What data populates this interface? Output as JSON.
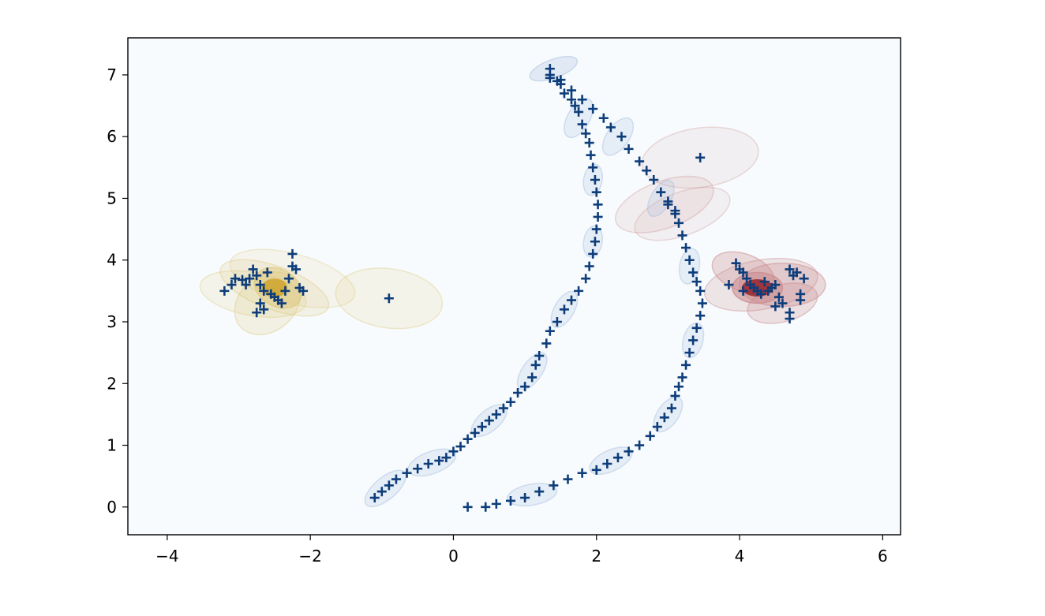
{
  "chart_data": {
    "type": "scatter",
    "title": "",
    "xlabel": "",
    "ylabel": "",
    "xlim": [
      -4.55,
      6.25
    ],
    "ylim": [
      -0.45,
      7.6
    ],
    "xticks": [
      -4,
      -2,
      0,
      2,
      4,
      6
    ],
    "yticks": [
      0,
      1,
      2,
      3,
      4,
      5,
      6,
      7
    ],
    "xtick_labels": [
      "−4",
      "−2",
      "0",
      "2",
      "4",
      "6"
    ],
    "ytick_labels": [
      "0",
      "1",
      "2",
      "3",
      "4",
      "5",
      "6",
      "7"
    ],
    "grid": false,
    "legend": "none",
    "marker": "+",
    "marker_color": "#0d3d7a",
    "background": "#f7fbfd",
    "series": [
      {
        "cluster_color": "#c99a12",
        "ellipse_color": "#dec67a",
        "points": [
          [
            -3.2,
            3.5
          ],
          [
            -3.1,
            3.6
          ],
          [
            -3.05,
            3.7
          ],
          [
            -2.95,
            3.68
          ],
          [
            -2.9,
            3.6
          ],
          [
            -2.85,
            3.7
          ],
          [
            -2.8,
            3.85
          ],
          [
            -2.75,
            3.75
          ],
          [
            -2.7,
            3.6
          ],
          [
            -2.65,
            3.5
          ],
          [
            -2.6,
            3.8
          ],
          [
            -2.55,
            3.45
          ],
          [
            -2.5,
            3.4
          ],
          [
            -2.45,
            3.35
          ],
          [
            -2.4,
            3.3
          ],
          [
            -2.35,
            3.5
          ],
          [
            -2.3,
            3.7
          ],
          [
            -2.25,
            3.9
          ],
          [
            -2.2,
            3.85
          ],
          [
            -2.25,
            4.1
          ],
          [
            -2.15,
            3.55
          ],
          [
            -2.1,
            3.5
          ],
          [
            -2.75,
            3.15
          ],
          [
            -2.65,
            3.2
          ],
          [
            -2.7,
            3.3
          ],
          [
            -0.9,
            3.38
          ]
        ],
        "ellipses": [
          [
            -2.5,
            3.55,
            0.8,
            0.35,
            20,
            0.18
          ],
          [
            -2.25,
            3.7,
            0.9,
            0.4,
            15,
            0.12
          ],
          [
            -2.8,
            3.45,
            0.75,
            0.35,
            10,
            0.15
          ],
          [
            -2.6,
            3.3,
            0.5,
            0.45,
            -40,
            0.2
          ],
          [
            -2.45,
            3.55,
            0.35,
            0.3,
            30,
            0.45
          ],
          [
            -0.9,
            3.38,
            0.75,
            0.48,
            8,
            0.15
          ]
        ]
      },
      {
        "cluster_color": "#8a0a12",
        "ellipse_color": "#c98a8e",
        "points": [
          [
            3.45,
            5.66
          ],
          [
            3.0,
            4.9
          ],
          [
            3.1,
            4.75
          ],
          [
            3.85,
            3.6
          ],
          [
            3.95,
            3.95
          ],
          [
            4.0,
            3.85
          ],
          [
            4.05,
            3.8
          ],
          [
            4.1,
            3.7
          ],
          [
            4.15,
            3.6
          ],
          [
            4.2,
            3.55
          ],
          [
            4.25,
            3.5
          ],
          [
            4.3,
            3.45
          ],
          [
            4.35,
            3.65
          ],
          [
            4.4,
            3.5
          ],
          [
            4.45,
            3.55
          ],
          [
            4.5,
            3.6
          ],
          [
            4.55,
            3.4
          ],
          [
            4.6,
            3.3
          ],
          [
            4.7,
            3.15
          ],
          [
            4.7,
            3.05
          ],
          [
            4.75,
            3.75
          ],
          [
            4.8,
            3.8
          ],
          [
            4.85,
            3.45
          ],
          [
            4.9,
            3.7
          ],
          [
            4.05,
            3.5
          ],
          [
            4.5,
            3.25
          ],
          [
            4.85,
            3.35
          ],
          [
            4.7,
            3.85
          ]
        ],
        "ellipses": [
          [
            3.45,
            5.66,
            0.82,
            0.48,
            -8,
            0.1
          ],
          [
            2.95,
            4.9,
            0.72,
            0.38,
            -20,
            0.12
          ],
          [
            3.2,
            4.75,
            0.7,
            0.35,
            -20,
            0.1
          ],
          [
            4.3,
            3.6,
            0.8,
            0.4,
            -10,
            0.2
          ],
          [
            4.6,
            3.6,
            0.6,
            0.35,
            0,
            0.3
          ],
          [
            4.25,
            3.55,
            0.35,
            0.25,
            0,
            0.55
          ],
          [
            4.6,
            3.3,
            0.5,
            0.3,
            -15,
            0.25
          ],
          [
            4.05,
            3.8,
            0.45,
            0.3,
            20,
            0.3
          ]
        ]
      },
      {
        "cluster_color": "#0d3d7a",
        "ellipse_color": "#9fb7dc",
        "points": [
          [
            1.35,
            7.1
          ],
          [
            1.35,
            6.95
          ],
          [
            1.45,
            6.9
          ],
          [
            1.5,
            6.85
          ],
          [
            1.55,
            6.7
          ],
          [
            1.65,
            6.6
          ],
          [
            1.7,
            6.5
          ],
          [
            1.75,
            6.4
          ],
          [
            1.8,
            6.2
          ],
          [
            1.85,
            6.05
          ],
          [
            1.9,
            5.9
          ],
          [
            1.92,
            5.7
          ],
          [
            1.95,
            5.5
          ],
          [
            1.98,
            5.3
          ],
          [
            2.0,
            5.1
          ],
          [
            2.02,
            4.9
          ],
          [
            2.02,
            4.7
          ],
          [
            2.0,
            4.5
          ],
          [
            1.98,
            4.3
          ],
          [
            1.95,
            4.1
          ],
          [
            1.9,
            3.9
          ],
          [
            1.85,
            3.7
          ],
          [
            1.75,
            3.5
          ],
          [
            1.65,
            3.35
          ],
          [
            1.55,
            3.2
          ],
          [
            1.45,
            3.0
          ],
          [
            1.35,
            2.85
          ],
          [
            1.3,
            2.65
          ],
          [
            1.2,
            2.45
          ],
          [
            1.15,
            2.3
          ],
          [
            1.1,
            2.1
          ],
          [
            1.0,
            1.95
          ],
          [
            0.9,
            1.85
          ],
          [
            0.8,
            1.7
          ],
          [
            0.7,
            1.6
          ],
          [
            0.6,
            1.5
          ],
          [
            0.5,
            1.4
          ],
          [
            0.4,
            1.3
          ],
          [
            0.3,
            1.2
          ],
          [
            0.2,
            1.1
          ],
          [
            0.1,
            0.98
          ],
          [
            0.0,
            0.9
          ],
          [
            -0.1,
            0.8
          ],
          [
            -0.2,
            0.75
          ],
          [
            -0.35,
            0.7
          ],
          [
            -0.5,
            0.62
          ],
          [
            -0.65,
            0.55
          ],
          [
            -0.8,
            0.45
          ],
          [
            -0.9,
            0.35
          ],
          [
            -1.0,
            0.25
          ],
          [
            -1.1,
            0.15
          ],
          [
            1.35,
            7.0
          ],
          [
            1.5,
            6.92
          ],
          [
            1.65,
            6.75
          ],
          [
            1.8,
            6.6
          ],
          [
            1.95,
            6.45
          ],
          [
            2.1,
            6.3
          ],
          [
            2.2,
            6.15
          ],
          [
            2.35,
            6.0
          ],
          [
            2.45,
            5.8
          ],
          [
            2.6,
            5.6
          ],
          [
            2.7,
            5.45
          ],
          [
            2.8,
            5.3
          ],
          [
            2.9,
            5.1
          ],
          [
            3.0,
            4.95
          ],
          [
            3.1,
            4.8
          ],
          [
            3.15,
            4.6
          ],
          [
            3.2,
            4.4
          ],
          [
            3.25,
            4.2
          ],
          [
            3.3,
            4.0
          ],
          [
            3.35,
            3.8
          ],
          [
            3.4,
            3.65
          ],
          [
            3.45,
            3.5
          ],
          [
            3.48,
            3.3
          ],
          [
            3.45,
            3.1
          ],
          [
            3.4,
            2.9
          ],
          [
            3.35,
            2.7
          ],
          [
            3.3,
            2.5
          ],
          [
            3.25,
            2.3
          ],
          [
            3.2,
            2.1
          ],
          [
            3.15,
            1.95
          ],
          [
            3.1,
            1.8
          ],
          [
            3.05,
            1.6
          ],
          [
            2.95,
            1.45
          ],
          [
            2.85,
            1.3
          ],
          [
            2.75,
            1.15
          ],
          [
            2.6,
            1.0
          ],
          [
            2.45,
            0.9
          ],
          [
            2.3,
            0.8
          ],
          [
            2.15,
            0.7
          ],
          [
            2.0,
            0.6
          ],
          [
            1.8,
            0.55
          ],
          [
            1.6,
            0.45
          ],
          [
            1.4,
            0.35
          ],
          [
            1.2,
            0.25
          ],
          [
            1.0,
            0.15
          ],
          [
            0.8,
            0.1
          ],
          [
            0.6,
            0.05
          ],
          [
            0.45,
            0.0
          ],
          [
            0.2,
            0.0
          ]
        ],
        "ellipses": [
          [
            1.4,
            7.1,
            0.35,
            0.15,
            -20,
            0.25
          ],
          [
            1.75,
            6.3,
            0.3,
            0.18,
            -60,
            0.2
          ],
          [
            1.95,
            5.3,
            0.22,
            0.15,
            -80,
            0.2
          ],
          [
            1.95,
            4.3,
            0.22,
            0.15,
            -80,
            0.2
          ],
          [
            1.55,
            3.2,
            0.28,
            0.16,
            -60,
            0.2
          ],
          [
            1.1,
            2.2,
            0.3,
            0.16,
            -55,
            0.2
          ],
          [
            0.5,
            1.4,
            0.3,
            0.17,
            -40,
            0.2
          ],
          [
            -0.3,
            0.72,
            0.35,
            0.18,
            -20,
            0.2
          ],
          [
            -0.95,
            0.3,
            0.35,
            0.18,
            -40,
            0.2
          ],
          [
            2.3,
            6.0,
            0.3,
            0.18,
            -55,
            0.2
          ],
          [
            2.9,
            5.0,
            0.28,
            0.16,
            -60,
            0.2
          ],
          [
            3.3,
            3.9,
            0.25,
            0.16,
            -80,
            0.2
          ],
          [
            3.35,
            2.7,
            0.25,
            0.16,
            -75,
            0.2
          ],
          [
            3.0,
            1.5,
            0.28,
            0.17,
            -55,
            0.2
          ],
          [
            2.2,
            0.75,
            0.32,
            0.17,
            -25,
            0.2
          ],
          [
            1.1,
            0.2,
            0.35,
            0.17,
            -10,
            0.2
          ]
        ]
      }
    ]
  }
}
